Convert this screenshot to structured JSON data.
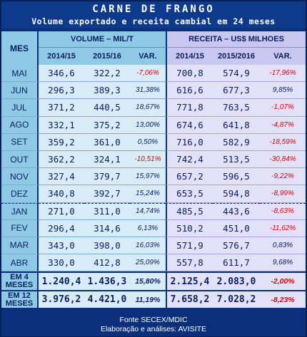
{
  "title": "CARNE DE FRANGO",
  "subtitle": "Volume exportado e receita cambial em 24 meses",
  "headers": {
    "mes": "MES",
    "volume_group": "VOLUME – MIL/T",
    "receita_group": "RECEITA – US$ MILHOES",
    "vol_cols": [
      "2014/15",
      "2015/16",
      "VAR."
    ],
    "rec_cols": [
      "2014/15",
      "2015/2016",
      "VAR."
    ]
  },
  "rows": [
    {
      "mes": "MAI",
      "v1": "346,6",
      "v2": "322,2",
      "vv": "-7,06%",
      "r1": "700,8",
      "r2": "574,9",
      "rv": "-17,96%"
    },
    {
      "mes": "JUN",
      "v1": "296,3",
      "v2": "389,3",
      "vv": "31,38%",
      "r1": "616,6",
      "r2": "677,3",
      "rv": "9,85%"
    },
    {
      "mes": "JUL",
      "v1": "371,2",
      "v2": "440,5",
      "vv": "18,67%",
      "r1": "771,8",
      "r2": "763,5",
      "rv": "-1,07%"
    },
    {
      "mes": "AGO",
      "v1": "332,1",
      "v2": "375,2",
      "vv": "13,00%",
      "r1": "674,6",
      "r2": "641,8",
      "rv": "-4,87%"
    },
    {
      "mes": "SET",
      "v1": "359,2",
      "v2": "361,0",
      "vv": "0,50%",
      "r1": "716,0",
      "r2": "582,9",
      "rv": "-18,59%"
    },
    {
      "mes": "OUT",
      "v1": "362,2",
      "v2": "324,1",
      "vv": "-10,51%",
      "r1": "742,4",
      "r2": "513,5",
      "rv": "-30,84%"
    },
    {
      "mes": "NOV",
      "v1": "327,4",
      "v2": "379,7",
      "vv": "15,97%",
      "r1": "657,2",
      "r2": "596,5",
      "rv": "-9,22%"
    },
    {
      "mes": "DEZ",
      "v1": "340,8",
      "v2": "392,7",
      "vv": "15,24%",
      "r1": "653,5",
      "r2": "594,8",
      "rv": "-8,99%"
    },
    {
      "mes": "JAN",
      "v1": "271,0",
      "v2": "311,0",
      "vv": "14,74%",
      "r1": "485,5",
      "r2": "443,6",
      "rv": "-8,63%"
    },
    {
      "mes": "FEV",
      "v1": "296,4",
      "v2": "314,6",
      "vv": "6,13%",
      "r1": "510,2",
      "r2": "451,0",
      "rv": "-11,62%"
    },
    {
      "mes": "MAR",
      "v1": "343,0",
      "v2": "398,0",
      "vv": "16,03%",
      "r1": "571,9",
      "r2": "576,7",
      "rv": "0,83%"
    },
    {
      "mes": "ABR",
      "v1": "330,0",
      "v2": "412,8",
      "vv": "25,09%",
      "r1": "557,8",
      "r2": "611,7",
      "rv": "9,68%"
    }
  ],
  "totals": [
    {
      "mes1": "EM 4",
      "mes2": "MESES",
      "v1": "1.240,4",
      "v2": "1.436,3",
      "vv": "15,80%",
      "r1": "2.125,4",
      "r2": "2.083,0",
      "rv": "-2,00%"
    },
    {
      "mes1": "EM 12",
      "mes2": "MESES",
      "v1": "3.976,2",
      "v2": "4.421,0",
      "vv": "11,19%",
      "r1": "7.658,2",
      "r2": "7.028,2",
      "rv": "-8,23%"
    }
  ],
  "footer": {
    "line1": "Fonte SECEX/MDIC",
    "line2": "Elaboração e análises: AVISITE"
  },
  "colors": {
    "negative": "#e00000",
    "header_blue": "#8ecae6",
    "header_purple": "#c9c6ef",
    "frame": "#0b2f7a"
  }
}
